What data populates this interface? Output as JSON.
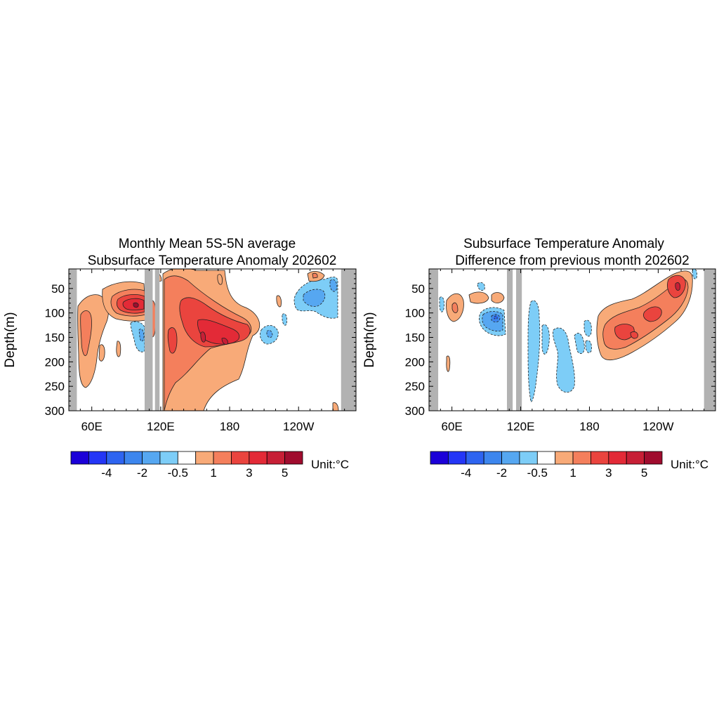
{
  "chart_data": [
    {
      "type": "heatmap",
      "title_line1": "Monthly Mean 5S-5N average",
      "title_line2": "Subsurface Temperature Anomaly 202602",
      "ylabel": "Depth(m)",
      "x_ticks": [
        {
          "lon": 60,
          "label": "60E"
        },
        {
          "lon": 120,
          "label": "120E"
        },
        {
          "lon": 180,
          "label": "180"
        },
        {
          "lon": 240,
          "label": "120W"
        }
      ],
      "xlim": [
        40,
        290
      ],
      "y_ticks": [
        50,
        100,
        150,
        200,
        250,
        300
      ],
      "ylim": [
        300,
        10
      ],
      "land_masks_lon": [
        [
          40,
          47
        ],
        [
          106,
          113
        ],
        [
          115,
          119
        ],
        [
          277,
          290
        ]
      ],
      "colorbar": {
        "levels": [
          -5,
          -4,
          -3,
          -2,
          -1,
          -0.5,
          0.5,
          1,
          2,
          3,
          4,
          5
        ],
        "labels": [
          "-4",
          "-2",
          "-0.5",
          "1",
          "3",
          "5"
        ],
        "colors": [
          "#1b00d8",
          "#2436f6",
          "#2e64f0",
          "#3d86ee",
          "#56a7f1",
          "#7dcdf7",
          "#ffffff",
          "#f8aa78",
          "#f47f5c",
          "#ea443e",
          "#e32a37",
          "#c71f36",
          "#a00c2e"
        ],
        "unit_label": "Unit:°C"
      },
      "anomaly_regions": [
        {
          "lon": 58,
          "depth": 95,
          "value": 1.8
        },
        {
          "lon": 85,
          "depth": 80,
          "value": 3.8
        },
        {
          "lon": 165,
          "depth": 150,
          "value": 3.4
        },
        {
          "lon": 145,
          "depth": 200,
          "value": 1.6
        },
        {
          "lon": 230,
          "depth": 150,
          "value": -0.8
        },
        {
          "lon": 260,
          "depth": 60,
          "value": -1.6
        }
      ]
    },
    {
      "type": "heatmap",
      "title_line1": "Subsurface Temperature Anomaly",
      "title_line2": "Difference from previous month 202602",
      "ylabel": "Depth(m)",
      "x_ticks": [
        {
          "lon": 60,
          "label": "60E"
        },
        {
          "lon": 120,
          "label": "120E"
        },
        {
          "lon": 180,
          "label": "180"
        },
        {
          "lon": 240,
          "label": "120W"
        }
      ],
      "xlim": [
        40,
        290
      ],
      "y_ticks": [
        50,
        100,
        150,
        200,
        250,
        300
      ],
      "ylim": [
        300,
        10
      ],
      "land_masks_lon": [
        [
          40,
          48
        ],
        [
          108,
          113
        ],
        [
          116,
          121
        ],
        [
          280,
          290
        ]
      ],
      "colorbar": {
        "levels": [
          -5,
          -4,
          -3,
          -2,
          -1,
          -0.5,
          0.5,
          1,
          2,
          3,
          4,
          5
        ],
        "labels": [
          "-4",
          "-2",
          "-0.5",
          "1",
          "3",
          "5"
        ],
        "colors": [
          "#1b00d8",
          "#2436f6",
          "#2e64f0",
          "#3d86ee",
          "#56a7f1",
          "#7dcdf7",
          "#ffffff",
          "#f8aa78",
          "#f47f5c",
          "#ea443e",
          "#e32a37",
          "#c71f36",
          "#a00c2e"
        ],
        "unit_label": "Unit:°C"
      },
      "anomaly_regions": [
        {
          "lon": 95,
          "depth": 105,
          "value": -2.2
        },
        {
          "lon": 140,
          "depth": 180,
          "value": -0.8
        },
        {
          "lon": 225,
          "depth": 130,
          "value": 1.8
        },
        {
          "lon": 260,
          "depth": 60,
          "value": 2.6
        }
      ]
    }
  ]
}
